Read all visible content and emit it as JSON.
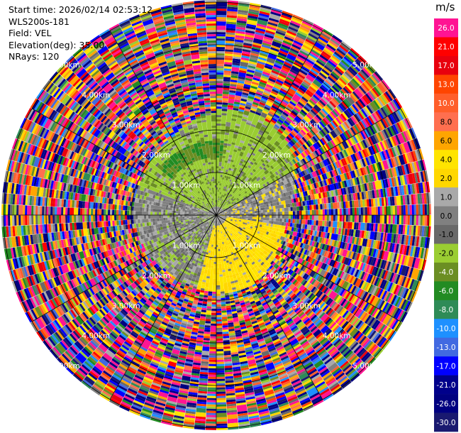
{
  "header": {
    "start_time": "Start time: 2026/02/14 02:53:12",
    "instrument": "WLS200s-181",
    "field": "Field: VEL",
    "elevation": "Elevation(deg): 35.00",
    "nrays": "NRays: 120"
  },
  "chart_data": {
    "type": "heatmap",
    "projection": "polar-ppi",
    "field": "VEL",
    "units": "m/s",
    "range_rings_km": [
      1,
      2,
      3,
      4,
      5
    ],
    "ring_labels": [
      "1.00km",
      "2.00km",
      "3.00km",
      "4.00km",
      "5.00km"
    ],
    "nrays": 120,
    "elevation_deg": 35.0,
    "colorbar": {
      "unit_label": "m/s",
      "bins": [
        {
          "label": "26.0",
          "color": "#ff1493"
        },
        {
          "label": "21.0",
          "color": "#ff0000"
        },
        {
          "label": "17.0",
          "color": "#e8000e"
        },
        {
          "label": "13.0",
          "color": "#ff4500"
        },
        {
          "label": "10.0",
          "color": "#ff5e2a"
        },
        {
          "label": "8.0",
          "color": "#ff6f4f"
        },
        {
          "label": "6.0",
          "color": "#ffa500"
        },
        {
          "label": "4.0",
          "color": "#ffe400"
        },
        {
          "label": "2.0",
          "color": "#ffd700"
        },
        {
          "label": "1.0",
          "color": "#a9a9a9"
        },
        {
          "label": "0.0",
          "color": "#808080"
        },
        {
          "label": "-1.0",
          "color": "#696969"
        },
        {
          "label": "-2.0",
          "color": "#9acd32"
        },
        {
          "label": "-4.0",
          "color": "#6b8e23"
        },
        {
          "label": "-6.0",
          "color": "#228b22"
        },
        {
          "label": "-8.0",
          "color": "#2e8b57"
        },
        {
          "label": "-10.0",
          "color": "#1e90ff"
        },
        {
          "label": "-13.0",
          "color": "#4169e1"
        },
        {
          "label": "-17.0",
          "color": "#0000ff"
        },
        {
          "label": "-21.0",
          "color": "#00008b"
        },
        {
          "label": "-26.0",
          "color": "#000080"
        },
        {
          "label": "-30.0",
          "color": "#191970"
        }
      ]
    },
    "near_field_pattern": {
      "north_west": "-2.0 to -6.0 (greens)",
      "south_east": "2.0 to 6.0 (yellows)",
      "east_west_band": "0.0 to -1.0 (greys)",
      "far_field": "noise (mixed colours)"
    }
  }
}
